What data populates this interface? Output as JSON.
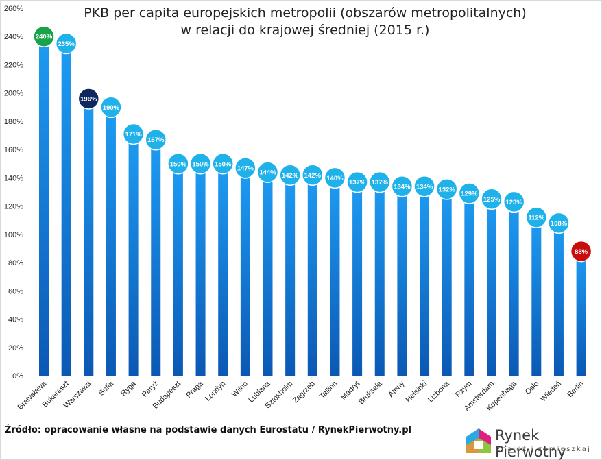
{
  "chart_data": {
    "type": "bar",
    "title": "PKB per capita europejskich metropolii (obszarów metropolitalnych)",
    "subtitle": "w relacji do krajowej średniej (2015 r.)",
    "categories": [
      "Bratysława",
      "Bukareszt",
      "Warszawa",
      "Sofia",
      "Ryga",
      "Paryż",
      "Budapeszt",
      "Praga",
      "Londyn",
      "Wilno",
      "Lublana",
      "Sztokholm",
      "Zagrzeb",
      "Tallinn",
      "Madryt",
      "Bruksela",
      "Ateny",
      "Helsinki",
      "Lizbona",
      "Rzym",
      "Amsterdam",
      "Kopenhaga",
      "Oslo",
      "Wiedeń",
      "Berlin"
    ],
    "values": [
      240,
      235,
      196,
      190,
      171,
      167,
      150,
      150,
      150,
      147,
      144,
      142,
      142,
      140,
      137,
      137,
      134,
      134,
      132,
      129,
      125,
      123,
      112,
      108,
      88
    ],
    "value_labels": [
      "240%",
      "235%",
      "196%",
      "190%",
      "171%",
      "167%",
      "150%",
      "150%",
      "150%",
      "147%",
      "144%",
      "142%",
      "142%",
      "140%",
      "137%",
      "137%",
      "134%",
      "134%",
      "132%",
      "129%",
      "125%",
      "123%",
      "112%",
      "108%",
      "88%"
    ],
    "y_ticks": [
      "0%",
      "20%",
      "40%",
      "60%",
      "80%",
      "100%",
      "120%",
      "140%",
      "160%",
      "180%",
      "200%",
      "220%",
      "240%",
      "260%"
    ],
    "ylim": [
      0,
      260
    ],
    "xlabel": "",
    "ylabel": "",
    "grid": false,
    "legend": "none",
    "colors": {
      "bar_top": "#1e9cf3",
      "bar_bottom": "#0b58b4",
      "marker_default": "#1fb2ea",
      "marker_max": "#17a34a",
      "marker_highlight": "#10265f",
      "marker_min": "#c90c0c"
    },
    "highlights": {
      "max_index": 0,
      "highlight_index": 2,
      "min_index": 24
    }
  },
  "footer": {
    "source": "Źródło: opracowanie własne na podstawie danych Eurostatu / RynekPierwotny.pl"
  },
  "logo": {
    "name": "Rynek Pierwotny",
    "tagline": "znajdź i zamieszkaj"
  }
}
